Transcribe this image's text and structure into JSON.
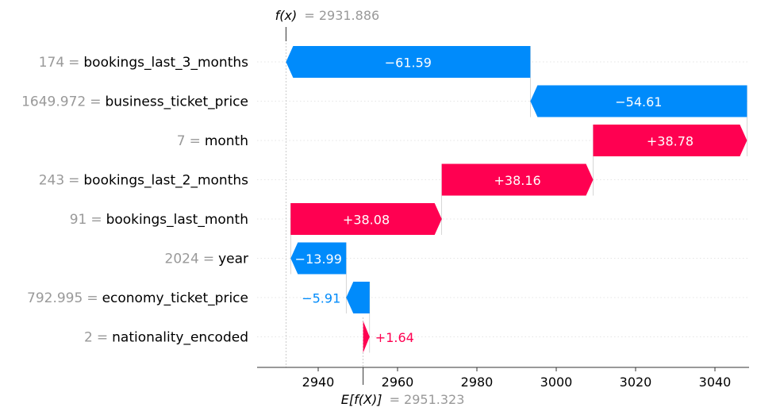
{
  "chart_data": {
    "type": "waterfall",
    "fx_label": "f(x)",
    "fx_value": "= 2931.886",
    "efx_label": "E[f(X)]",
    "efx_value": "= 2951.323",
    "base_value": 2951.323,
    "output_value": 2931.886,
    "xlim": [
      2924.6,
      3048.6
    ],
    "xticks": [
      2940,
      2960,
      2980,
      3000,
      3020,
      3040
    ],
    "xtick_labels": [
      "2940",
      "2960",
      "2980",
      "3000",
      "3020",
      "3040"
    ],
    "features": [
      {
        "value": "174",
        "eq": "=",
        "name": "bookings_last_3_months",
        "contribution": -61.59,
        "label": "−61.59"
      },
      {
        "value": "1649.972",
        "eq": "=",
        "name": "business_ticket_price",
        "contribution": -54.61,
        "label": "−54.61"
      },
      {
        "value": "7",
        "eq": "=",
        "name": "month",
        "contribution": 38.78,
        "label": "+38.78"
      },
      {
        "value": "243",
        "eq": "=",
        "name": "bookings_last_2_months",
        "contribution": 38.16,
        "label": "+38.16"
      },
      {
        "value": "91",
        "eq": "=",
        "name": "bookings_last_month",
        "contribution": 38.08,
        "label": "+38.08"
      },
      {
        "value": "2024",
        "eq": "=",
        "name": "year",
        "contribution": -13.99,
        "label": "−13.99"
      },
      {
        "value": "792.995",
        "eq": "=",
        "name": "economy_ticket_price",
        "contribution": -5.91,
        "label": "−5.91"
      },
      {
        "value": "2",
        "eq": "=",
        "name": "nationality_encoded",
        "contribution": 1.64,
        "label": "+1.64"
      }
    ],
    "colors": {
      "positive": "#ff0051",
      "negative": "#008bfb",
      "label_inside": "#ffffff",
      "muted_text": "#999999",
      "gridline": "#cccccc"
    }
  }
}
